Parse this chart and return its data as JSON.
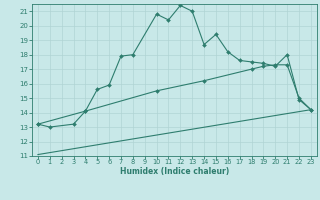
{
  "line1_x": [
    0,
    1,
    3,
    4,
    5,
    6,
    7,
    8,
    10,
    11,
    12,
    13,
    14,
    15,
    16,
    17,
    18,
    19,
    20,
    21,
    22,
    23
  ],
  "line1_y": [
    13.2,
    13.0,
    13.2,
    14.1,
    15.6,
    15.9,
    17.9,
    18.0,
    20.8,
    20.4,
    21.4,
    21.0,
    18.7,
    19.4,
    18.2,
    17.6,
    17.5,
    17.4,
    17.2,
    18.0,
    14.9,
    14.2
  ],
  "line2_x": [
    0,
    4,
    10,
    14,
    18,
    19,
    20,
    21,
    22,
    23
  ],
  "line2_y": [
    13.2,
    14.1,
    15.5,
    16.2,
    17.0,
    17.2,
    17.3,
    17.3,
    15.0,
    14.2
  ],
  "line3_x": [
    0,
    23
  ],
  "line3_y": [
    11.1,
    14.2
  ],
  "line_color": "#2e7d6e",
  "bg_color": "#c8e8e8",
  "grid_color": "#b0d4d4",
  "xlim": [
    -0.5,
    23.5
  ],
  "ylim": [
    11,
    21.5
  ],
  "yticks": [
    11,
    12,
    13,
    14,
    15,
    16,
    17,
    18,
    19,
    20,
    21
  ],
  "xticks": [
    0,
    1,
    2,
    3,
    4,
    5,
    6,
    7,
    8,
    9,
    10,
    11,
    12,
    13,
    14,
    15,
    16,
    17,
    18,
    19,
    20,
    21,
    22,
    23
  ],
  "xlabel": "Humidex (Indice chaleur)",
  "xlabel_fontsize": 5.5,
  "tick_fontsize": 4.8,
  "ytick_fontsize": 5.0
}
